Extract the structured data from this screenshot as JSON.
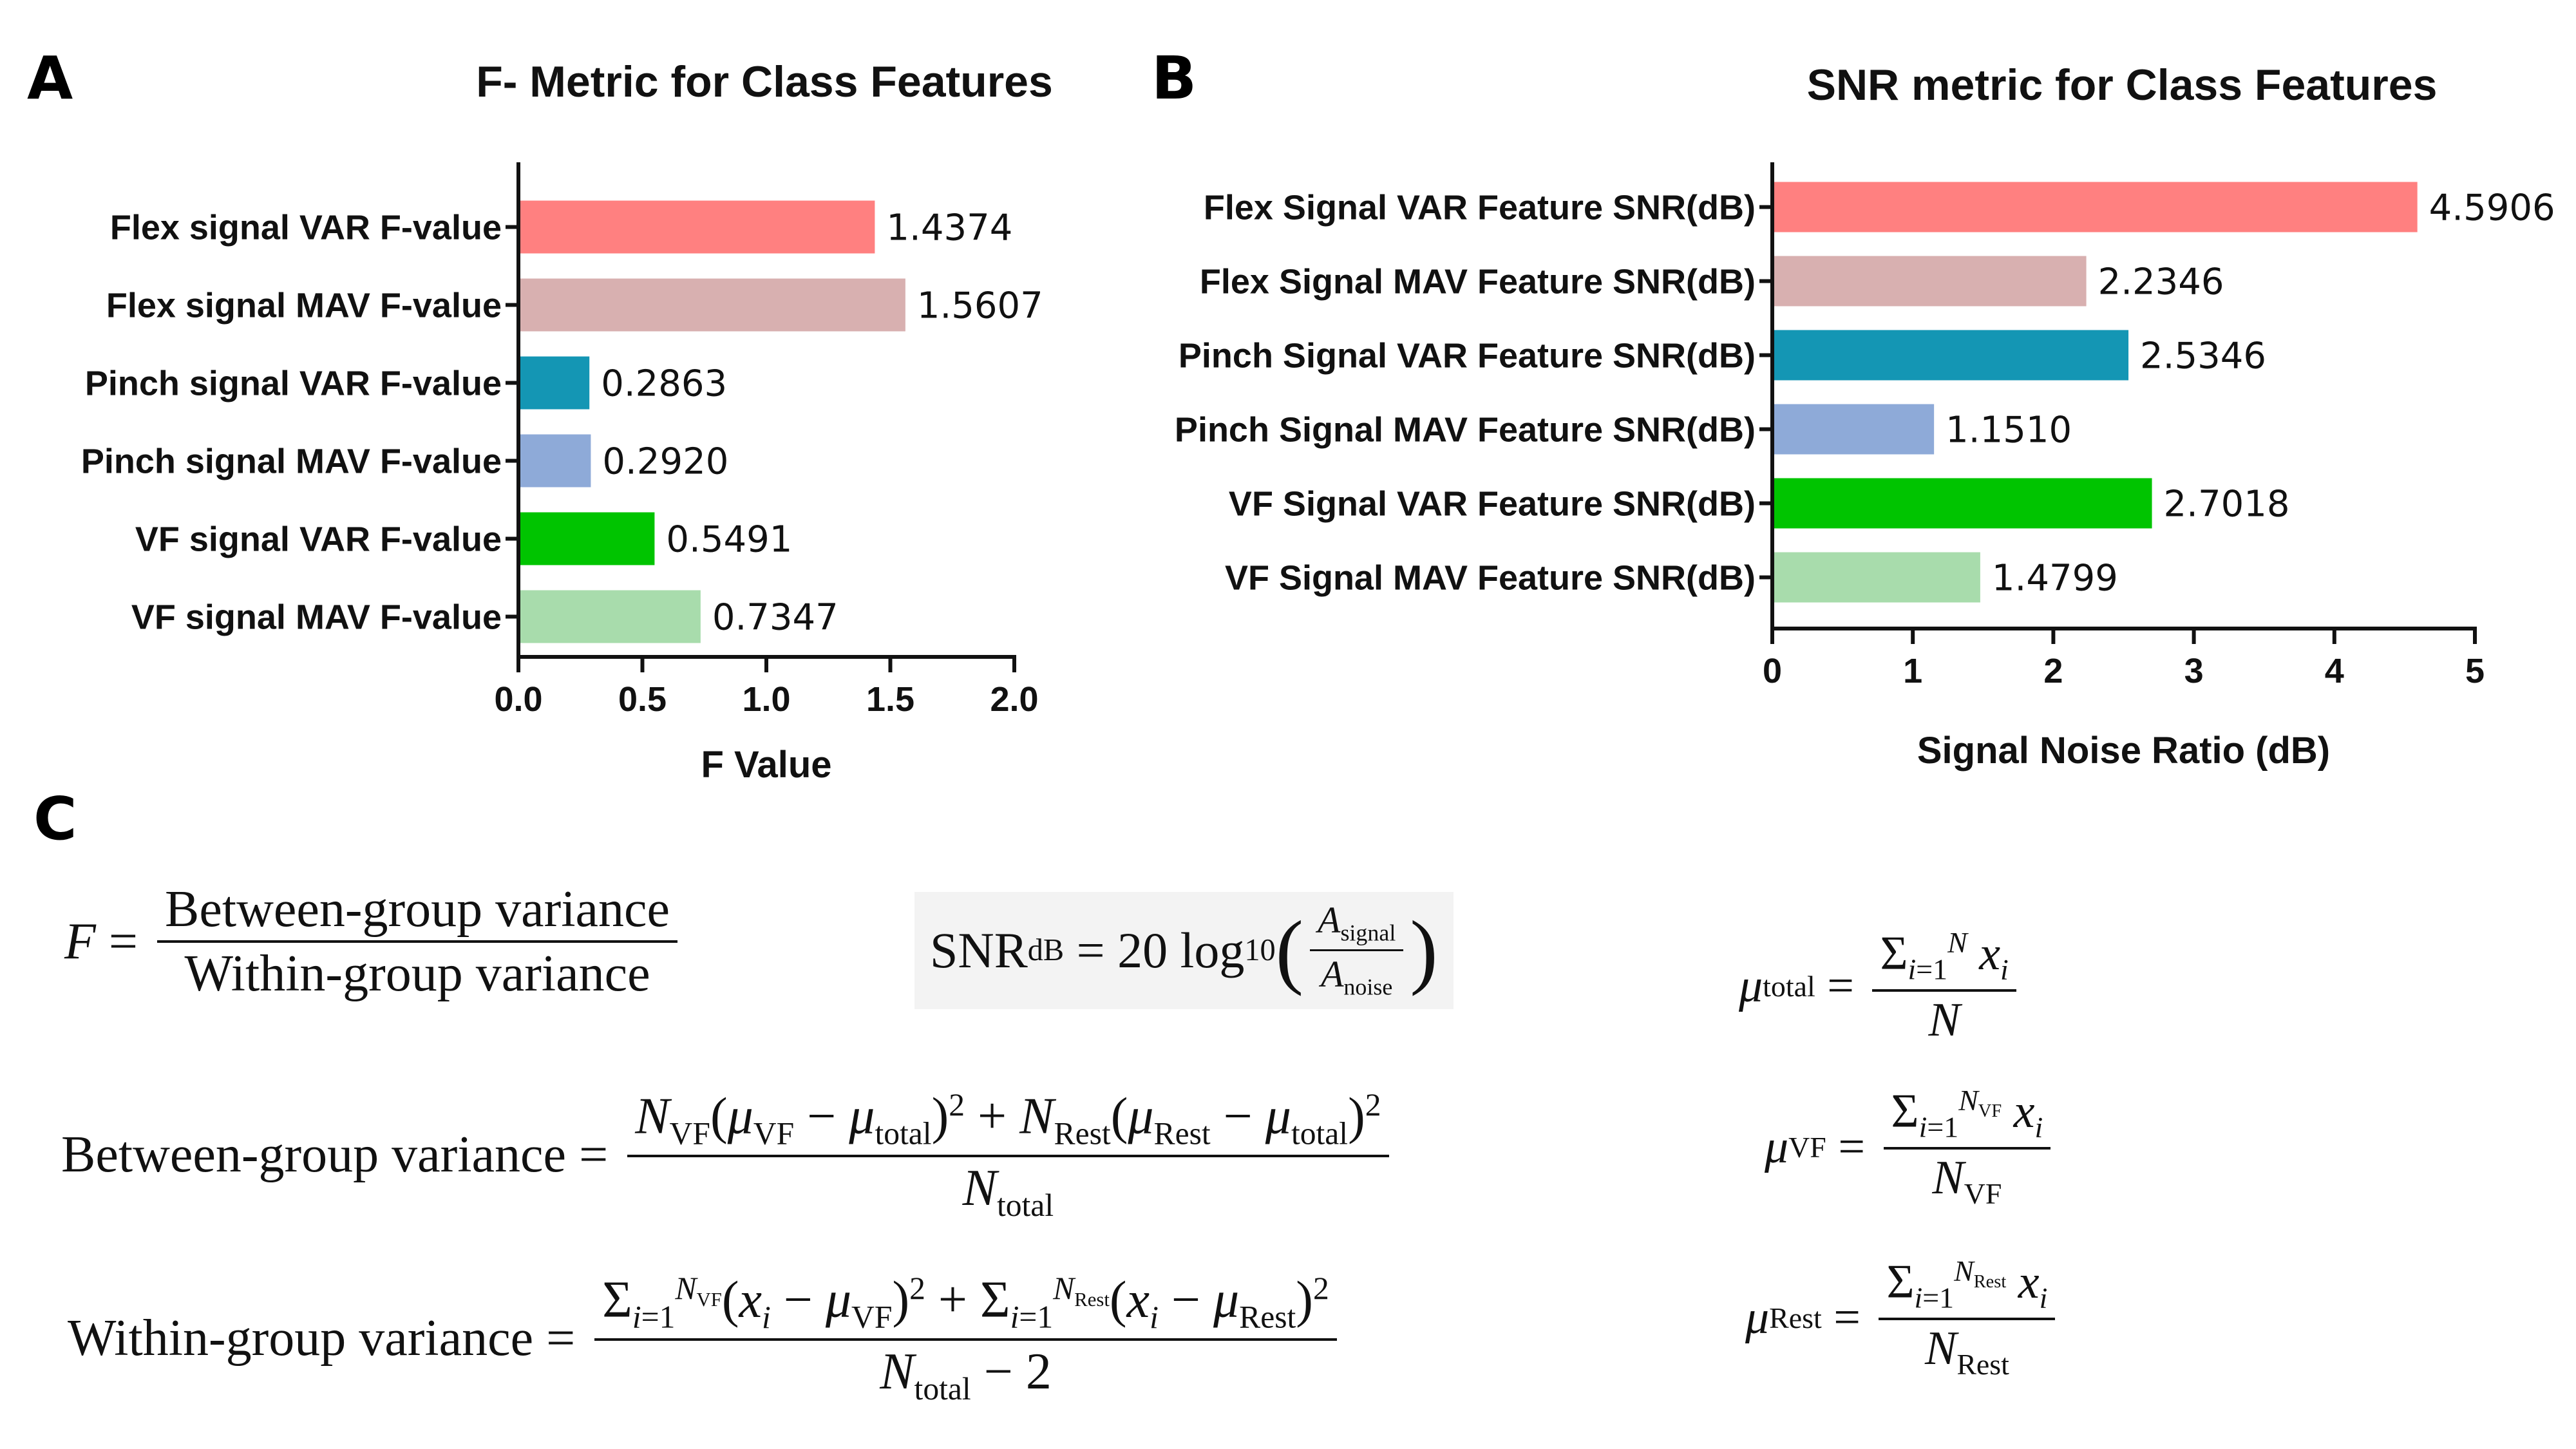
{
  "panels": {
    "a": "A",
    "b": "B",
    "c": "C"
  },
  "chart_data": [
    {
      "type": "bar",
      "orientation": "horizontal",
      "title": "F- Metric for Class Features",
      "xlabel": "F Value",
      "ylabel": "",
      "xlim": [
        0,
        2.0
      ],
      "ticks": [
        "0.0",
        "0.5",
        "1.0",
        "1.5",
        "2.0"
      ],
      "tick_values": [
        0,
        0.5,
        1.0,
        1.5,
        2.0
      ],
      "categories": [
        "Flex signal VAR F-value",
        "Flex signal MAV F-value",
        "Pinch signal VAR F-value",
        "Pinch signal MAV F-value",
        "VF signal VAR F-value",
        "VF signal MAV F-value"
      ],
      "values": [
        1.4374,
        1.5607,
        0.2863,
        0.292,
        0.5491,
        0.7347
      ],
      "value_labels": [
        "1.4374",
        "1.5607",
        "0.2863",
        "0.2920",
        "0.5491",
        "0.7347"
      ],
      "colors": [
        "#ff8080",
        "#d8b0b0",
        "#1496b4",
        "#8eaad8",
        "#00c400",
        "#a8dcac"
      ]
    },
    {
      "type": "bar",
      "orientation": "horizontal",
      "title": "SNR metric for Class Features",
      "xlabel": "Signal Noise Ratio (dB)",
      "ylabel": "",
      "xlim": [
        0,
        5
      ],
      "ticks": [
        "0",
        "1",
        "2",
        "3",
        "4",
        "5"
      ],
      "tick_values": [
        0,
        1,
        2,
        3,
        4,
        5
      ],
      "categories": [
        "Flex Signal VAR Feature SNR(dB)",
        "Flex Signal MAV Feature SNR(dB)",
        "Pinch Signal VAR Feature SNR(dB)",
        "Pinch Signal MAV Feature SNR(dB)",
        "VF Signal VAR Feature SNR(dB)",
        "VF Signal MAV Feature SNR(dB)"
      ],
      "values": [
        4.5906,
        2.2346,
        2.5346,
        1.151,
        2.7018,
        1.4799
      ],
      "value_labels": [
        "4.5906",
        "2.2346",
        "2.5346",
        "1.1510",
        "2.7018",
        "1.4799"
      ],
      "colors": [
        "#ff8080",
        "#d8b0b0",
        "#1496b4",
        "#8eaad8",
        "#00c400",
        "#a8dcac"
      ]
    }
  ],
  "formulas": {
    "between": "Between-group variance",
    "within": "Within-group variance",
    "snr_base": "SNR",
    "snr_sub": "dB",
    "snr_rhs": "= 20 log",
    "snr_log_sub": "10",
    "signal": "signal",
    "noise": "noise",
    "total": "total",
    "rest": "Rest",
    "vf": "VF",
    "two": "2"
  }
}
